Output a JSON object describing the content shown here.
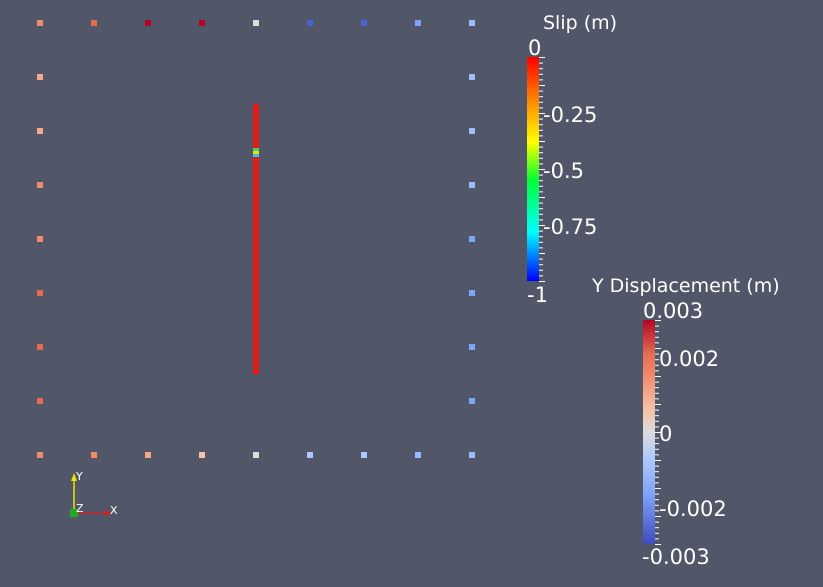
{
  "slip_legend": {
    "title": "Slip (m)",
    "ticks": [
      "0",
      "-0.25",
      "-0.5",
      "-0.75",
      "-1"
    ],
    "colors": [
      "#ff0000",
      "#ff9900",
      "#ffff00",
      "#00ff33",
      "#00ffff",
      "#0000ff"
    ]
  },
  "ydisp_legend": {
    "title": "Y Displacement (m)",
    "ticks": [
      "0.003",
      "0.002",
      "0",
      "-0.002",
      "-0.003"
    ],
    "colors": [
      "#b40426",
      "#f08b6d",
      "#dddcdc",
      "#7ea3f8",
      "#3b4cc0"
    ]
  },
  "axes_triad": {
    "x_label": "X",
    "y_label": "Y",
    "z_label": "Z"
  },
  "background_color": "#525669",
  "fault_color": "#e31a1a",
  "marker_colors": {
    "top_row": [
      "#f08b6d",
      "#e36c55",
      "#b40426",
      "#b40426",
      "#dddcdc",
      "#4a63d3",
      "#4a63d3",
      "#7ea3f8",
      "#9abbff"
    ],
    "bottom_row": [
      "#f08b6d",
      "#f08b6d",
      "#f4a88a",
      "#f7c1a6",
      "#dddcdc",
      "#aec9fc",
      "#aec9fc",
      "#9abbff",
      "#9abbff"
    ],
    "left_col": [
      "#f4a88a",
      "#f4a88a",
      "#f08b6d",
      "#f08b6d",
      "#e36c55",
      "#e36c55",
      "#e36c55"
    ],
    "right_col": [
      "#9abbff",
      "#9abbff",
      "#9abbff",
      "#7ea3f8",
      "#7ea3f8",
      "#7ea3f8",
      "#7ea3f8"
    ]
  }
}
